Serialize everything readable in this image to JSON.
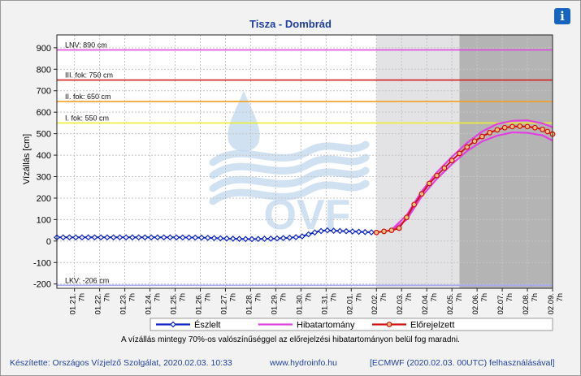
{
  "title": "Tisza - Dombrád",
  "info_icon": "info-icon",
  "note": "A vízállás mintegy 70%-os valószínűséggel az előrejelzési hibatartományon belül fog maradni.",
  "footer": {
    "author": "Készítette: Országos Vízjelző Szolgálat, 2020.02.03. 10:33",
    "website": "www.hydroinfo.hu",
    "source": "[ECMWF (2020.02.03. 00UTC) felhasználásával]"
  },
  "watermark_text": "OVF",
  "colors": {
    "observed": "#0a22c8",
    "error_band": "#e040e0",
    "forecast": "#d01010",
    "lnv": "#e040e0",
    "fok3": "#d21f1f",
    "fok2": "#f3a020",
    "fok1": "#eeee33",
    "lkv": "#a8a8f0",
    "forecast_shade": "#e3e3e6",
    "extended_shade": "#b4b4b4"
  },
  "chart_data": {
    "type": "line",
    "ylabel": "Vízállás [cm]",
    "ylim": [
      -220,
      960
    ],
    "yticks": [
      -200,
      -100,
      0,
      100,
      200,
      300,
      400,
      500,
      600,
      700,
      800,
      900
    ],
    "x_tick_labels": [
      [
        "01.21.",
        "7h"
      ],
      [
        "01.22.",
        "7h"
      ],
      [
        "01.23.",
        "7h"
      ],
      [
        "01.24.",
        "7h"
      ],
      [
        "01.25.",
        "7h"
      ],
      [
        "01.26.",
        "7h"
      ],
      [
        "01.27.",
        "7h"
      ],
      [
        "01.28.",
        "7h"
      ],
      [
        "01.29.",
        "7h"
      ],
      [
        "01.30.",
        "7h"
      ],
      [
        "01.31.",
        "7h"
      ],
      [
        "02.01.",
        "7h"
      ],
      [
        "02.02.",
        "7h"
      ],
      [
        "02.03.",
        "7h"
      ],
      [
        "02.04.",
        "7h"
      ],
      [
        "02.05.",
        "7h"
      ],
      [
        "02.06.",
        "7h"
      ],
      [
        "02.07.",
        "7h"
      ],
      [
        "02.08.",
        "7h"
      ],
      [
        "02.09.",
        "7h"
      ]
    ],
    "x_start_day": 20.6,
    "x_end_day": 40.3,
    "forecast_start_day": 33.3,
    "extended_start_day": 36.6,
    "thresholds": [
      {
        "label": "LNV: 890 cm",
        "value": 890,
        "color_key": "lnv"
      },
      {
        "label": "III. fok: 750 cm",
        "value": 750,
        "color_key": "fok3"
      },
      {
        "label": "II. fok: 650 cm",
        "value": 650,
        "color_key": "fok2"
      },
      {
        "label": "I. fok: 550 cm",
        "value": 550,
        "color_key": "fok1"
      },
      {
        "label": "LKV: -206 cm",
        "value": -206,
        "color_key": "lkv"
      }
    ],
    "legend": [
      "Észlelt",
      "Hibatartomány",
      "Előrejelzett"
    ],
    "series": [
      {
        "name": "Észlelt",
        "day": [
          20.6,
          21.3,
          22.3,
          23.3,
          24.3,
          25.3,
          26.3,
          27.3,
          28.3,
          29.3,
          29.8,
          30.3,
          30.7,
          31.0,
          31.3,
          31.6,
          32.3,
          32.8,
          33.3
        ],
        "value": [
          17,
          17,
          17,
          17,
          17,
          17,
          16,
          12,
          9,
          12,
          15,
          20,
          35,
          45,
          50,
          48,
          45,
          42,
          40
        ]
      },
      {
        "name": "Előrejelzett",
        "day": [
          33.3,
          33.6,
          33.9,
          34.2,
          34.5,
          34.8,
          35.1,
          35.4,
          35.7,
          36.0,
          36.3,
          36.6,
          36.9,
          37.2,
          37.5,
          37.8,
          38.1,
          38.4,
          38.7,
          39.0,
          39.3,
          39.6,
          39.9,
          40.1,
          40.3
        ],
        "value": [
          40,
          45,
          50,
          60,
          110,
          170,
          220,
          268,
          305,
          340,
          375,
          408,
          438,
          465,
          487,
          505,
          518,
          528,
          533,
          535,
          533,
          528,
          520,
          510,
          498
        ]
      },
      {
        "name": "Hibatartomány",
        "day": [
          33.9,
          34.5,
          35.1,
          35.7,
          36.3,
          36.9,
          37.5,
          38.1,
          38.7,
          39.3,
          39.9,
          40.3
        ],
        "upper": [
          52,
          120,
          232,
          320,
          392,
          457,
          510,
          545,
          560,
          562,
          548,
          530
        ],
        "lower": [
          48,
          100,
          208,
          290,
          358,
          419,
          464,
          491,
          506,
          504,
          492,
          468
        ]
      }
    ]
  }
}
